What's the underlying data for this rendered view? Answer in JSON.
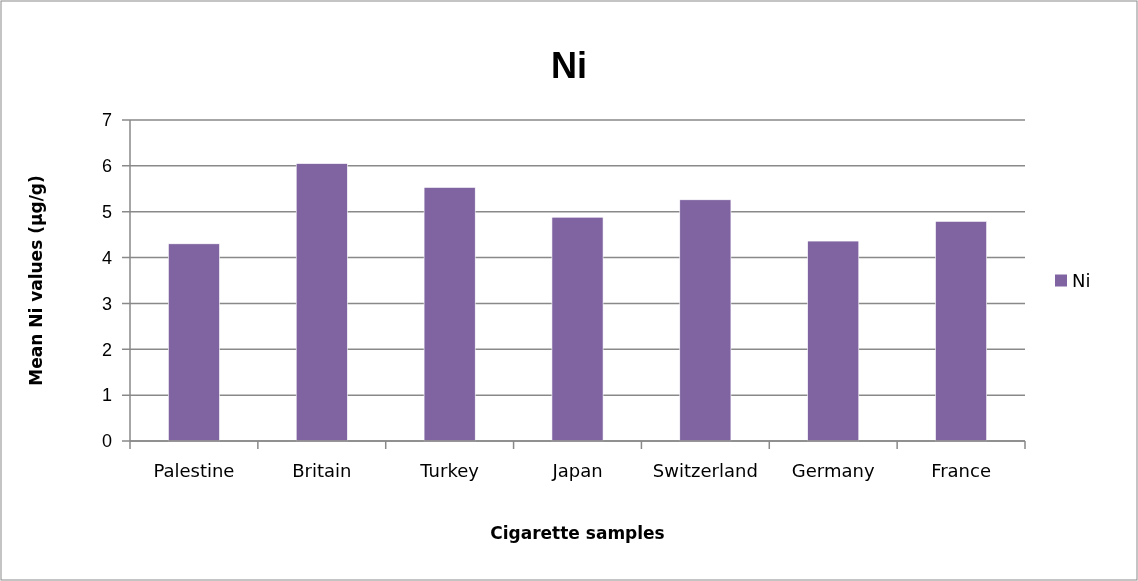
{
  "chart_data": {
    "type": "bar",
    "title": "Ni",
    "xlabel": "Cigarette samples",
    "ylabel": "Mean Ni  values (µg/g)",
    "categories": [
      "Palestine",
      "Britain",
      "Turkey",
      "Japan",
      "Switzerland",
      "Germany",
      "France"
    ],
    "series": [
      {
        "name": "Ni",
        "color": "#8064a2",
        "values": [
          4.3,
          6.05,
          5.53,
          4.88,
          5.26,
          4.36,
          4.79
        ]
      }
    ],
    "ylim": [
      0,
      7
    ],
    "yticks": [
      0,
      1,
      2,
      3,
      4,
      5,
      6,
      7
    ],
    "grid": "y",
    "legend": "right"
  }
}
